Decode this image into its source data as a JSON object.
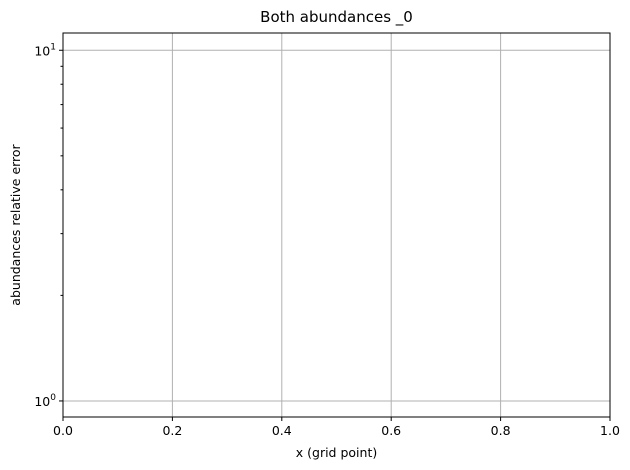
{
  "chart_data": {
    "type": "line",
    "title": "Both abundances _0",
    "xlabel": "x (grid point)",
    "ylabel": "abundances relative error",
    "xlim": [
      0.0,
      1.0
    ],
    "ylim": [
      0.9,
      11.2
    ],
    "yscale": "log",
    "grid": true,
    "x_ticks": [
      {
        "value": 0.0,
        "label": "0.0"
      },
      {
        "value": 0.2,
        "label": "0.2"
      },
      {
        "value": 0.4,
        "label": "0.4"
      },
      {
        "value": 0.6,
        "label": "0.6"
      },
      {
        "value": 0.8,
        "label": "0.8"
      },
      {
        "value": 1.0,
        "label": "1.0"
      }
    ],
    "y_major_ticks": [
      {
        "value": 1,
        "base": "10",
        "exp": "0"
      },
      {
        "value": 10,
        "base": "10",
        "exp": "1"
      }
    ],
    "y_minor_ticks": [
      2,
      3,
      4,
      5,
      6,
      7,
      8,
      9
    ],
    "series": []
  }
}
